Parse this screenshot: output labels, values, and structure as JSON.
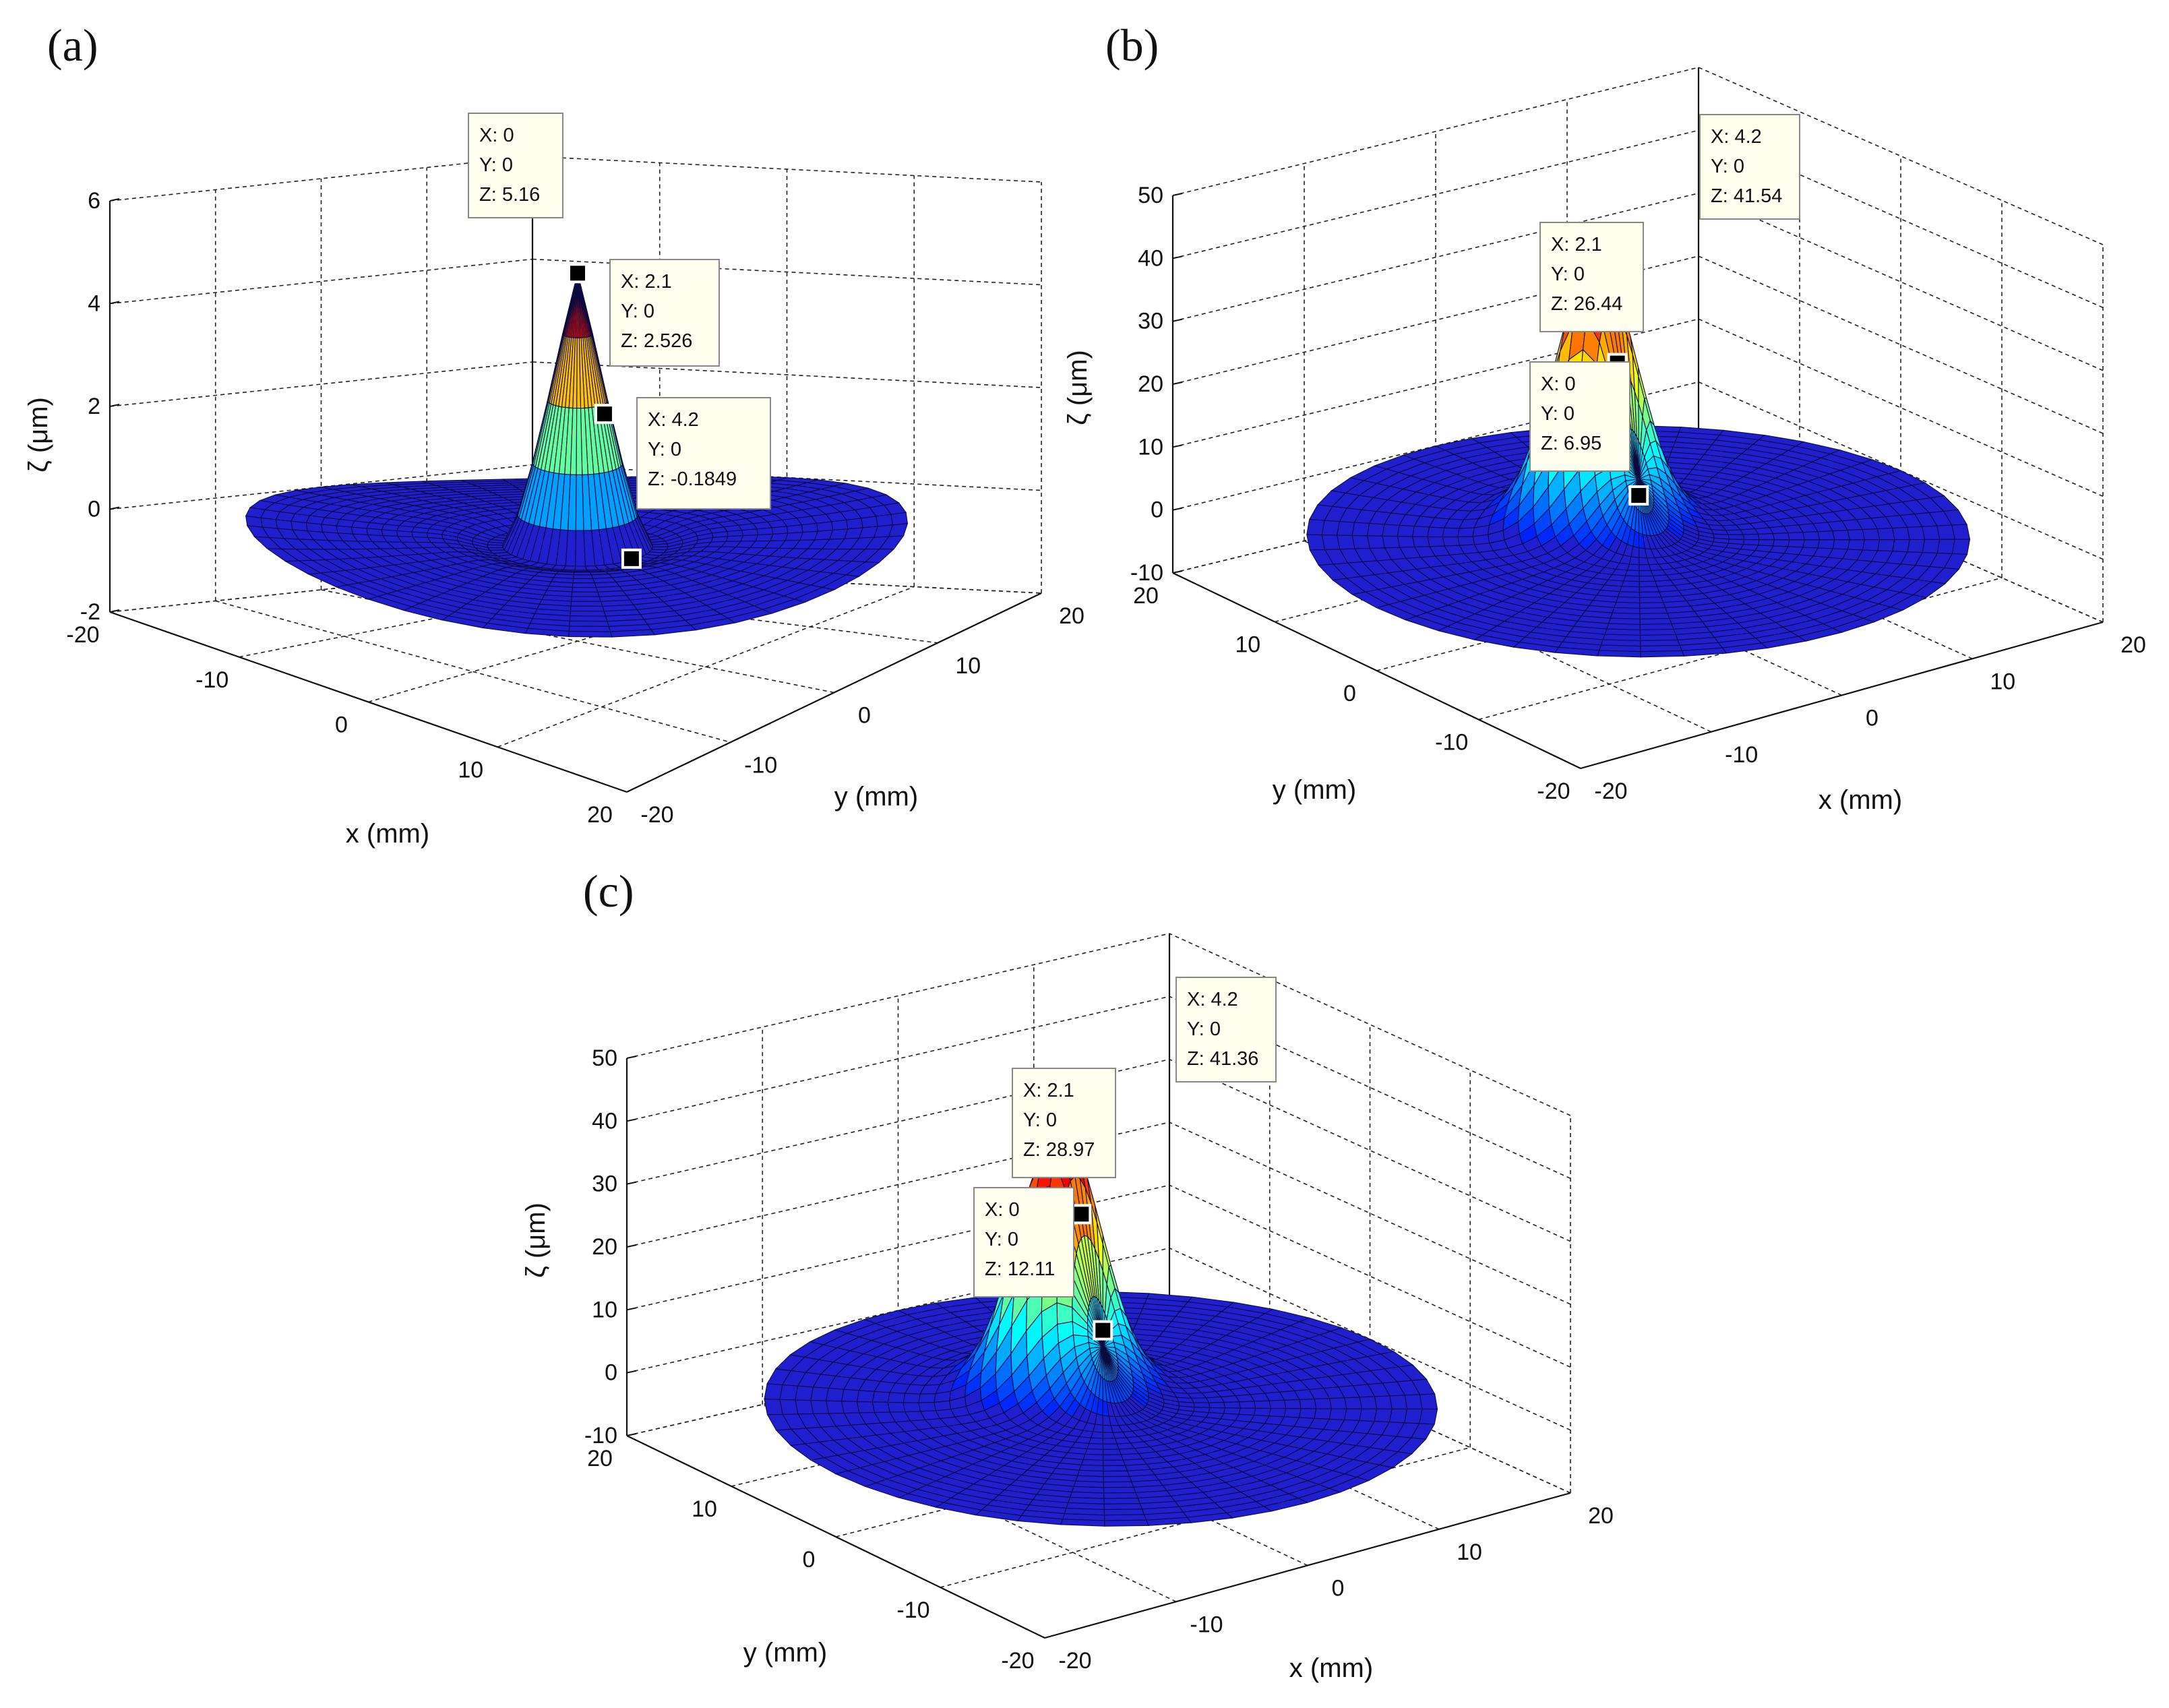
{
  "figure": {
    "panel_labels": [
      "(a)",
      "(b)",
      "(c)"
    ]
  },
  "chart_data": [
    {
      "type": "surface3d",
      "panel": "(a)",
      "title": "",
      "xlabel": "x (mm)",
      "ylabel": "y (mm)",
      "zlabel": "ζ (μm)",
      "xlim": [
        -20,
        20
      ],
      "ylim": [
        -20,
        20
      ],
      "zlim": [
        -2,
        6
      ],
      "x_ticks": [
        "-20",
        "-10",
        "0",
        "10",
        "20"
      ],
      "y_ticks": [
        "-20",
        "-10",
        "0",
        "10",
        "20"
      ],
      "z_ticks": [
        "-2",
        "0",
        "2",
        "4",
        "6"
      ],
      "peak_z": 5.16,
      "surface_radius_mm": 20,
      "datatips": [
        {
          "X": "0",
          "Y": "0",
          "Z": "5.16",
          "lines": [
            "X: 0",
            "Y: 0",
            "Z: 5.16"
          ]
        },
        {
          "X": "2.1",
          "Y": "0",
          "Z": "2.526",
          "lines": [
            "X: 2.1",
            "Y: 0",
            "Z: 2.526"
          ]
        },
        {
          "X": "4.2",
          "Y": "0",
          "Z": "-0.1849",
          "lines": [
            "X: 4.2",
            "Y: 0",
            "Z: -0.1849"
          ]
        }
      ]
    },
    {
      "type": "surface3d",
      "panel": "(b)",
      "title": "",
      "xlabel": "x (mm)",
      "ylabel": "y (mm)",
      "zlabel": "ζ (μm)",
      "xlim": [
        -20,
        20
      ],
      "ylim": [
        -20,
        20
      ],
      "zlim": [
        -10,
        50
      ],
      "x_ticks": [
        "-20",
        "-10",
        "0",
        "10",
        "20"
      ],
      "y_ticks": [
        "-20",
        "-10",
        "0",
        "10",
        "20"
      ],
      "z_ticks": [
        "-10",
        "0",
        "10",
        "20",
        "30",
        "40",
        "50"
      ],
      "peak_z": 41.54,
      "surface_radius_mm": 20,
      "datatips": [
        {
          "X": "4.2",
          "Y": "0",
          "Z": "41.54",
          "lines": [
            "X: 4.2",
            "Y: 0",
            "Z: 41.54"
          ]
        },
        {
          "X": "2.1",
          "Y": "0",
          "Z": "26.44",
          "lines": [
            "X: 2.1",
            "Y: 0",
            "Z: 26.44"
          ]
        },
        {
          "X": "0",
          "Y": "0",
          "Z": "6.95",
          "lines": [
            "X: 0",
            "Y: 0",
            "Z: 6.95"
          ]
        }
      ]
    },
    {
      "type": "surface3d",
      "panel": "(c)",
      "title": "",
      "xlabel": "x (mm)",
      "ylabel": "y (mm)",
      "zlabel": "ζ (μm)",
      "xlim": [
        -20,
        20
      ],
      "ylim": [
        -20,
        20
      ],
      "zlim": [
        -10,
        50
      ],
      "x_ticks": [
        "-20",
        "-10",
        "0",
        "10",
        "20"
      ],
      "y_ticks": [
        "-20",
        "-10",
        "0",
        "10",
        "20"
      ],
      "z_ticks": [
        "-10",
        "0",
        "10",
        "20",
        "30",
        "40",
        "50"
      ],
      "peak_z": 41.36,
      "surface_radius_mm": 20,
      "datatips": [
        {
          "X": "4.2",
          "Y": "0",
          "Z": "41.36",
          "lines": [
            "X: 4.2",
            "Y: 0",
            "Z: 41.36"
          ]
        },
        {
          "X": "2.1",
          "Y": "0",
          "Z": "28.97",
          "lines": [
            "X: 2.1",
            "Y: 0",
            "Z: 28.97"
          ]
        },
        {
          "X": "0",
          "Y": "0",
          "Z": "12.11",
          "lines": [
            "X: 0",
            "Y: 0",
            "Z: 12.11"
          ]
        }
      ]
    }
  ]
}
